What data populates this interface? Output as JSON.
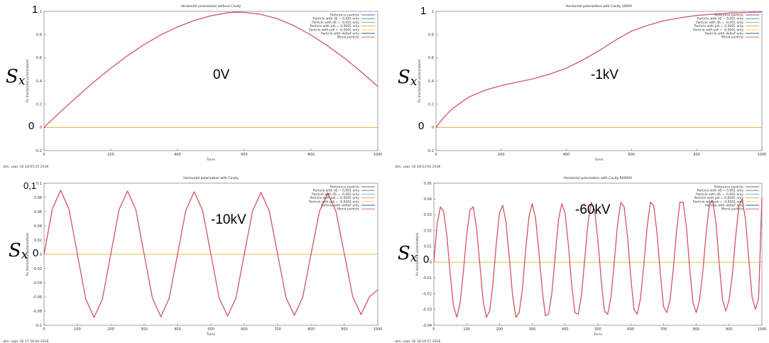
{
  "colors": {
    "reference": "#9b3fd1",
    "ds_pos": "#2f9e3b",
    "ds_neg": "#49b8e8",
    "pd_pos": "#e2a323",
    "pd_neg": "#f1df4a",
    "deltaF": "#1f5fbf",
    "worst": "#d9534f"
  },
  "legend_colors": [
    "#9b3fd1",
    "#2f9e3b",
    "#49b8e8",
    "#e2a323",
    "#f1df4a",
    "#1f5fbf",
    "#d9534f"
  ],
  "chart_data": [
    {
      "type": "line",
      "title": "Horizontal polarization without Cavity",
      "xlabel": "Turns",
      "ylabel": "Px (horizontal polarization)",
      "xlim": [
        0,
        1000
      ],
      "ylim": [
        -0.2,
        1
      ],
      "xticks": [
        "0",
        "200",
        "400",
        "600",
        "800",
        "1000"
      ],
      "yticks": [
        "-0.2",
        "0",
        "0.2",
        "0.4",
        "0.6",
        "0.8",
        "1"
      ],
      "timestamp": "dim. sept. 02 18:05:25 2018",
      "legend": [
        "Reference particle",
        "Particle with dS = 0,001 only",
        "Particle with dS = -0,001 only",
        "Particle with pdi = 0,0001 only",
        "Particle with pdi = -0,0001 only",
        "Particle with deltaF only",
        "Worst particle"
      ],
      "series": [
        {
          "name": "Reference particle",
          "x": [
            0,
            50,
            100,
            150,
            200,
            250,
            300,
            350,
            400,
            450,
            500,
            550,
            570,
            600,
            650,
            700,
            750,
            800,
            850,
            900,
            950,
            1000
          ],
          "y": [
            0,
            0.136,
            0.267,
            0.393,
            0.51,
            0.618,
            0.714,
            0.797,
            0.866,
            0.921,
            0.962,
            0.988,
            0.993,
            0.991,
            0.974,
            0.936,
            0.875,
            0.796,
            0.702,
            0.597,
            0.479,
            0.353
          ]
        },
        {
          "name": "Worst particle",
          "x": [
            0,
            50,
            100,
            150,
            200,
            250,
            300,
            350,
            400,
            450,
            500,
            550,
            570,
            600,
            650,
            700,
            750,
            800,
            850,
            900,
            950,
            1000
          ],
          "y": [
            0,
            0.136,
            0.267,
            0.393,
            0.51,
            0.618,
            0.714,
            0.797,
            0.866,
            0.921,
            0.962,
            0.988,
            0.993,
            0.991,
            0.974,
            0.936,
            0.875,
            0.796,
            0.702,
            0.597,
            0.479,
            0.353
          ]
        },
        {
          "name": "Particle with pdi = 0,0001 only",
          "x": [
            0,
            1000
          ],
          "y": [
            0,
            0
          ]
        }
      ]
    },
    {
      "type": "line",
      "title": "Horizontal polarization with Cavity 1000V",
      "xlabel": "Turns",
      "ylabel": "Px (horizontal polarization)",
      "xlim": [
        0,
        1000
      ],
      "ylim": [
        -0.2,
        1
      ],
      "xticks": [
        "0",
        "200",
        "400",
        "600",
        "800",
        "1000"
      ],
      "yticks": [
        "-0.2",
        "0",
        "0.2",
        "0.4",
        "0.6",
        "0.8",
        "1"
      ],
      "timestamp": "dim. sept. 02 18:23:04 2018",
      "legend": [
        "Reference particle",
        "Particle with dS = 0,001 only",
        "Particle with dS = -0,001 only",
        "Particle with pdi = 0,0001 only",
        "Particle with pdi = -0,0001 only",
        "Particle with deltaF only",
        "Worst particle"
      ],
      "series": [
        {
          "name": "Reference particle",
          "x": [
            0,
            25,
            50,
            100,
            150,
            200,
            250,
            300,
            350,
            400,
            450,
            500,
            550,
            600,
            650,
            700,
            750,
            800,
            850,
            900,
            950,
            1000
          ],
          "y": [
            0,
            0.09,
            0.16,
            0.26,
            0.32,
            0.36,
            0.39,
            0.42,
            0.46,
            0.51,
            0.58,
            0.66,
            0.75,
            0.83,
            0.88,
            0.92,
            0.945,
            0.965,
            0.975,
            0.985,
            0.99,
            0.995
          ]
        },
        {
          "name": "Worst particle",
          "x": [
            0,
            25,
            50,
            100,
            150,
            200,
            250,
            300,
            350,
            400,
            450,
            500,
            550,
            600,
            650,
            700,
            750,
            800,
            850,
            900,
            950,
            1000
          ],
          "y": [
            0,
            0.09,
            0.16,
            0.26,
            0.32,
            0.36,
            0.39,
            0.42,
            0.46,
            0.51,
            0.58,
            0.66,
            0.75,
            0.83,
            0.88,
            0.92,
            0.945,
            0.965,
            0.975,
            0.985,
            0.99,
            0.995
          ]
        },
        {
          "name": "Particle with pdi = 0,0001 only",
          "x": [
            0,
            1000
          ],
          "y": [
            0,
            0
          ]
        }
      ]
    },
    {
      "type": "line",
      "title": "Horizontal polarization with Cavity",
      "xlabel": "Turns",
      "ylabel": "Px (horizontal polarization)",
      "xlim": [
        0,
        1000
      ],
      "ylim": [
        -0.1,
        0.1
      ],
      "xticks": [
        "0",
        "100",
        "200",
        "300",
        "400",
        "500",
        "600",
        "700",
        "800",
        "900",
        "1000"
      ],
      "yticks": [
        "-0.1",
        "-0.08",
        "-0.06",
        "-0.04",
        "-0.02",
        "0",
        "0.02",
        "0.04",
        "0.06",
        "0.08",
        "0.1"
      ],
      "timestamp": "dim. sept. 02 17:56:04 2018",
      "legend": [
        "Reference particle",
        "Particle with dS = 0,001 only",
        "Particle with dS = -0,001 only",
        "Particle with pdi = 0,0001 only",
        "Particle with pdi = -0,0001 only",
        "Particle with deltaF only",
        "Worst particle"
      ],
      "series": [
        {
          "name": "Reference particle",
          "x": [
            0,
            25,
            50,
            75,
            100,
            125,
            150,
            175,
            200,
            225,
            250,
            275,
            300,
            325,
            350,
            375,
            400,
            425,
            450,
            475,
            500,
            525,
            550,
            575,
            600,
            625,
            650,
            675,
            700,
            725,
            750,
            775,
            800,
            825,
            850,
            875,
            900,
            925,
            950,
            975,
            1000
          ],
          "y": [
            0,
            0.064,
            0.09,
            0.063,
            0,
            -0.063,
            -0.089,
            -0.063,
            0,
            0.063,
            0.089,
            0.063,
            0,
            -0.062,
            -0.088,
            -0.062,
            0,
            0.062,
            0.088,
            0.062,
            0,
            -0.062,
            -0.087,
            -0.062,
            0,
            0.061,
            0.087,
            0.061,
            0,
            -0.061,
            -0.086,
            -0.061,
            0,
            0.06,
            0.086,
            0.06,
            0,
            -0.06,
            -0.085,
            -0.06,
            -0.05
          ]
        },
        {
          "name": "Worst particle",
          "x": [
            0,
            25,
            50,
            75,
            100,
            125,
            150,
            175,
            200,
            225,
            250,
            275,
            300,
            325,
            350,
            375,
            400,
            425,
            450,
            475,
            500,
            525,
            550,
            575,
            600,
            625,
            650,
            675,
            700,
            725,
            750,
            775,
            800,
            825,
            850,
            875,
            900,
            925,
            950,
            975,
            1000
          ],
          "y": [
            0,
            0.064,
            0.09,
            0.063,
            0,
            -0.063,
            -0.089,
            -0.063,
            0,
            0.063,
            0.089,
            0.063,
            0,
            -0.062,
            -0.088,
            -0.062,
            0,
            0.062,
            0.088,
            0.062,
            0,
            -0.062,
            -0.087,
            -0.062,
            0,
            0.061,
            0.087,
            0.061,
            0,
            -0.061,
            -0.086,
            -0.061,
            0,
            0.06,
            0.086,
            0.06,
            0,
            -0.06,
            -0.085,
            -0.06,
            -0.05
          ]
        },
        {
          "name": "Particle with pdi = 0,0001 only",
          "x": [
            0,
            1000
          ],
          "y": [
            0,
            0
          ]
        }
      ]
    },
    {
      "type": "line",
      "title": "Horizontal polarization with Cavity 60000V",
      "xlabel": "Turns",
      "ylabel": "Px (horizontal polarization)",
      "xlim": [
        0,
        1000
      ],
      "ylim": [
        -0.04,
        0.05
      ],
      "xticks": [
        "0",
        "100",
        "200",
        "300",
        "400",
        "500",
        "600",
        "700",
        "800",
        "900",
        "1000"
      ],
      "yticks": [
        "-0.04",
        "-0.03",
        "-0.02",
        "-0.01",
        "0",
        "0.01",
        "0.02",
        "0.03",
        "0.04",
        "0.05"
      ],
      "timestamp": "dim. sept. 02 18:16:57 2018",
      "legend": [
        "Reference particle",
        "Particle with dS = 0,001 only",
        "Particle with dS = -0,001 only",
        "Particle with pdi = 0,0001 only",
        "Particle with pdi = -0,0001 only",
        "Particle with deltaF only",
        "Worst particle"
      ],
      "series": [
        {
          "name": "Reference particle",
          "x": [
            0,
            10,
            20,
            30,
            40,
            50,
            60,
            70,
            80,
            90,
            100,
            110,
            120,
            130,
            140,
            150,
            160,
            170,
            180,
            190,
            200,
            210,
            220,
            230,
            240,
            250,
            260,
            270,
            280,
            290,
            300,
            310,
            320,
            330,
            340,
            350,
            360,
            370,
            380,
            390,
            400,
            410,
            420,
            430,
            440,
            450,
            460,
            470,
            480,
            490,
            500,
            510,
            520,
            530,
            540,
            550,
            560,
            570,
            580,
            590,
            600,
            610,
            620,
            630,
            640,
            650,
            660,
            670,
            680,
            690,
            700,
            710,
            720,
            730,
            740,
            750,
            760,
            770,
            780,
            790,
            800,
            810,
            820,
            830,
            840,
            850,
            860,
            870,
            880,
            890,
            900,
            910,
            920,
            930,
            940,
            950,
            960,
            970,
            980,
            990,
            1000
          ],
          "y": [
            0,
            0.024,
            0.035,
            0.032,
            0.016,
            -0.008,
            -0.028,
            -0.035,
            -0.026,
            -0.006,
            0.017,
            0.033,
            0.035,
            0.022,
            -0.001,
            -0.024,
            -0.035,
            -0.031,
            -0.014,
            0.011,
            0.031,
            0.036,
            0.025,
            0.003,
            -0.021,
            -0.035,
            -0.032,
            -0.017,
            0.008,
            0.029,
            0.037,
            0.028,
            0.007,
            -0.017,
            -0.034,
            -0.033,
            -0.019,
            0.004,
            0.027,
            0.037,
            0.031,
            0.011,
            -0.014,
            -0.032,
            -0.033,
            -0.021,
            0.002,
            0.025,
            0.038,
            0.033,
            0.014,
            -0.011,
            -0.031,
            -0.033,
            -0.022,
            0,
            0.024,
            0.038,
            0.035,
            0.017,
            -0.009,
            -0.03,
            -0.033,
            -0.023,
            -0.002,
            0.022,
            0.038,
            0.036,
            0.019,
            -0.006,
            -0.028,
            -0.032,
            -0.024,
            -0.004,
            0.02,
            0.038,
            0.038,
            0.022,
            -0.004,
            -0.026,
            -0.032,
            -0.024,
            -0.006,
            0.018,
            0.037,
            0.039,
            0.025,
            -0.001,
            -0.024,
            -0.031,
            -0.024,
            -0.008,
            0.016,
            0.036,
            0.04,
            0.027,
            0.002,
            -0.022,
            -0.03,
            -0.023,
            0.041
          ]
        },
        {
          "name": "Worst particle",
          "x": [
            0,
            10,
            20,
            30,
            40,
            50,
            60,
            70,
            80,
            90,
            100,
            110,
            120,
            130,
            140,
            150,
            160,
            170,
            180,
            190,
            200,
            210,
            220,
            230,
            240,
            250,
            260,
            270,
            280,
            290,
            300,
            310,
            320,
            330,
            340,
            350,
            360,
            370,
            380,
            390,
            400,
            410,
            420,
            430,
            440,
            450,
            460,
            470,
            480,
            490,
            500,
            510,
            520,
            530,
            540,
            550,
            560,
            570,
            580,
            590,
            600,
            610,
            620,
            630,
            640,
            650,
            660,
            670,
            680,
            690,
            700,
            710,
            720,
            730,
            740,
            750,
            760,
            770,
            780,
            790,
            800,
            810,
            820,
            830,
            840,
            850,
            860,
            870,
            880,
            890,
            900,
            910,
            920,
            930,
            940,
            950,
            960,
            970,
            980,
            990,
            1000
          ],
          "y": [
            0,
            0.024,
            0.035,
            0.032,
            0.016,
            -0.008,
            -0.028,
            -0.035,
            -0.026,
            -0.006,
            0.017,
            0.033,
            0.035,
            0.022,
            -0.001,
            -0.024,
            -0.035,
            -0.031,
            -0.014,
            0.011,
            0.031,
            0.036,
            0.025,
            0.003,
            -0.021,
            -0.035,
            -0.032,
            -0.017,
            0.008,
            0.029,
            0.037,
            0.028,
            0.007,
            -0.017,
            -0.034,
            -0.033,
            -0.019,
            0.004,
            0.027,
            0.037,
            0.031,
            0.011,
            -0.014,
            -0.032,
            -0.033,
            -0.021,
            0.002,
            0.025,
            0.038,
            0.033,
            0.014,
            -0.011,
            -0.031,
            -0.033,
            -0.022,
            0,
            0.024,
            0.038,
            0.035,
            0.017,
            -0.009,
            -0.03,
            -0.033,
            -0.023,
            -0.002,
            0.022,
            0.038,
            0.036,
            0.019,
            -0.006,
            -0.028,
            -0.032,
            -0.024,
            -0.004,
            0.02,
            0.038,
            0.038,
            0.022,
            -0.004,
            -0.026,
            -0.032,
            -0.024,
            -0.006,
            0.018,
            0.037,
            0.039,
            0.025,
            -0.001,
            -0.024,
            -0.031,
            -0.024,
            -0.008,
            0.016,
            0.036,
            0.04,
            0.027,
            0.002,
            -0.022,
            -0.03,
            -0.023,
            0.041
          ]
        },
        {
          "name": "Particle with pdi = 0,0001 only",
          "x": [
            0,
            1000
          ],
          "y": [
            0,
            0
          ]
        }
      ]
    }
  ],
  "annotations": {
    "panel_1": {
      "sx_main": "S",
      "sx_sub": "x",
      "voltage": "0V",
      "one": "1",
      "zero": "0"
    },
    "panel_2": {
      "sx_main": "S",
      "sx_sub": "x",
      "voltage": "-1kV",
      "one": "1",
      "zero": "0"
    },
    "panel_3": {
      "sx_main": "S",
      "sx_sub": "x",
      "voltage": "-10kV",
      "top": "0,1",
      "zero": "0"
    },
    "panel_4": {
      "sx_main": "S",
      "sx_sub": "x",
      "voltage": "-60kV",
      "zero": "0"
    }
  }
}
